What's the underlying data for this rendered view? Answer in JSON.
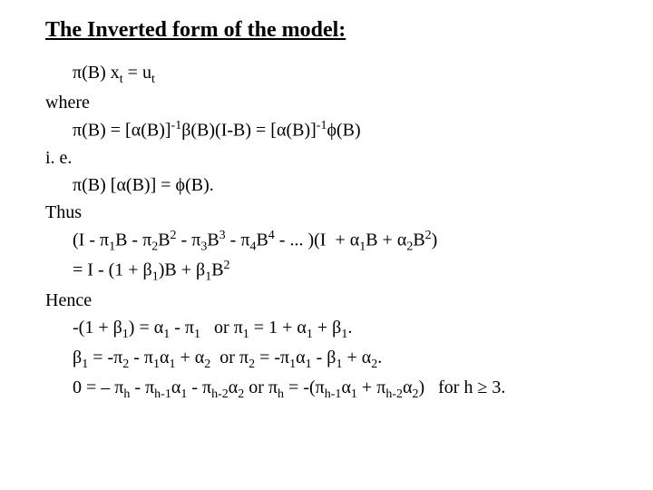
{
  "title": "The Inverted form of the model:",
  "colors": {
    "background": "#ffffff",
    "text": "#000000"
  },
  "fonts": {
    "family": "Times New Roman",
    "title_size": 24,
    "body_size": 20
  },
  "sym": {
    "pi": "π",
    "alpha": "α",
    "beta": "β",
    "phi": "ϕ"
  },
  "lines": {
    "l1_a": "(B) x",
    "l1_b": " = u",
    "l2": "where",
    "l3_a": "(B) = [",
    "l3_b": "(B)]",
    "l3_c": "(B)(I-B) = [",
    "l3_d": "(B)]",
    "l3_e": "(B)",
    "l4": "i. e.",
    "l5_a": "(B) [",
    "l5_b": "(B)] = ",
    "l5_c": "(B).",
    "l6": "Thus",
    "l7_a": "(I - ",
    "l7_b": "B - ",
    "l7_c": "B",
    "l7_d": " - ",
    "l7_e": "B",
    "l7_f": " - ",
    "l7_g": "B",
    "l7_h": " - ... )(I  + ",
    "l7_i": "B + ",
    "l7_j": "B",
    "l7_k": ")",
    "l8_a": "= I - (1 + ",
    "l8_b": ")B + ",
    "l8_c": "B",
    "l9": "Hence",
    "l10_a": "-(1 + ",
    "l10_b": ") = ",
    "l10_c": " - ",
    "l10_d": "   or ",
    "l10_e": " = 1 + ",
    "l10_f": " + ",
    "l10_g": ".",
    "l11_a": " = -",
    "l11_b": " - ",
    "l11_c": " + ",
    "l11_d": "  or ",
    "l11_e": " = -",
    "l11_f": " - ",
    "l11_g": " + ",
    "l11_h": ".",
    "l12_a": "0 = – ",
    "l12_b": " - ",
    "l12_c": " - ",
    "l12_d": " or ",
    "l12_e": " = -(",
    "l12_f": " + ",
    "l12_g": ")   for h ≥ 3.",
    "sub_t": "t",
    "sub_1": "1",
    "sub_2": "2",
    "sub_3": "3",
    "sub_4": "4",
    "sub_h": "h",
    "sub_h1": "h-1",
    "sub_h2": "h-2",
    "sup_m1": "-1",
    "sup_2": "2",
    "sup_3": "3",
    "sup_4": "4"
  }
}
